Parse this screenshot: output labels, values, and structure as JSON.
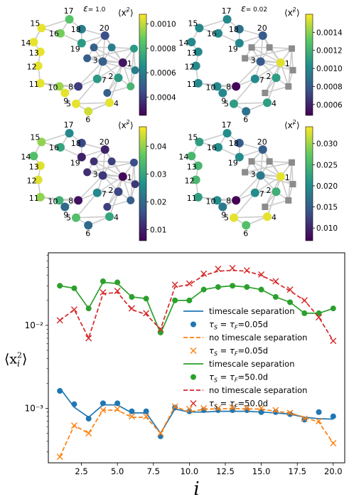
{
  "network": {
    "edges": [
      [
        1,
        2
      ],
      [
        1,
        3
      ],
      [
        1,
        7
      ],
      [
        1,
        20
      ],
      [
        1,
        21
      ],
      [
        1,
        22
      ],
      [
        1,
        23
      ],
      [
        1,
        24
      ],
      [
        1,
        25
      ],
      [
        1,
        26
      ],
      [
        1,
        27
      ],
      [
        2,
        3
      ],
      [
        2,
        4
      ],
      [
        2,
        7
      ],
      [
        2,
        26
      ],
      [
        3,
        20
      ],
      [
        3,
        7
      ],
      [
        3,
        8
      ],
      [
        3,
        21
      ],
      [
        3,
        22
      ],
      [
        4,
        6
      ],
      [
        4,
        5
      ],
      [
        4,
        2
      ],
      [
        5,
        6
      ],
      [
        5,
        7
      ],
      [
        6,
        4
      ],
      [
        7,
        8
      ],
      [
        8,
        10
      ],
      [
        8,
        11
      ],
      [
        8,
        9
      ],
      [
        9,
        10
      ],
      [
        10,
        11
      ],
      [
        11,
        12
      ],
      [
        12,
        13
      ],
      [
        13,
        14
      ],
      [
        14,
        15
      ],
      [
        15,
        16
      ],
      [
        15,
        17
      ],
      [
        16,
        17
      ],
      [
        17,
        18
      ],
      [
        18,
        19
      ],
      [
        18,
        20
      ],
      [
        19,
        20
      ],
      [
        20,
        22
      ],
      [
        21,
        22
      ],
      [
        21,
        23
      ],
      [
        22,
        24
      ],
      [
        23,
        24
      ],
      [
        23,
        25
      ],
      [
        24,
        25
      ],
      [
        25,
        26
      ],
      [
        26,
        27
      ],
      [
        27,
        2
      ],
      [
        19,
        16
      ],
      [
        20,
        21
      ],
      [
        24,
        26
      ]
    ],
    "squares": [
      21,
      22,
      23,
      24,
      25,
      26,
      27
    ]
  },
  "panels": [
    {
      "epsilon_label": "ε = 1.0",
      "colorbar_label": "⟨x_i²⟩",
      "colorbar_ticks": [
        "0.0010",
        "0.0008",
        "0.0006",
        "0.0004"
      ],
      "colorbar_tick_values": [
        0.001,
        0.0008,
        0.0006,
        0.0004
      ],
      "colorbar_range": [
        0.00025,
        0.00108
      ],
      "node_values": {
        "1": 0.0003,
        "2": 0.0007,
        "3": 0.0005,
        "4": 0.00105,
        "5": 0.00105,
        "6": 0.00102,
        "7": 0.0007,
        "8": 0.0004,
        "9": 0.00105,
        "10": 0.00095,
        "11": 0.00105,
        "12": 0.00105,
        "13": 0.00105,
        "14": 0.00105,
        "15": 0.00105,
        "16": 0.0009,
        "17": 0.00085,
        "18": 0.0006,
        "19": 0.0007,
        "20": 0.00045,
        "21": 0.0005,
        "22": 0.0006,
        "23": 0.0005,
        "24": 0.0007,
        "25": 0.0006,
        "26": 0.0008,
        "27": 0.0005
      }
    },
    {
      "epsilon_label": "ε = 0.02",
      "colorbar_label": "⟨x_i²⟩",
      "colorbar_ticks": [
        "0.0014",
        "0.0012",
        "0.0010",
        "0.0008",
        "0.0006"
      ],
      "colorbar_tick_values": [
        0.0014,
        0.0012,
        0.001,
        0.0008,
        0.0006
      ],
      "colorbar_range": [
        0.00048,
        0.0016
      ],
      "node_values": {
        "1": 0.00155,
        "2": 0.0011,
        "3": 0.0008,
        "4": 0.0011,
        "5": 0.0011,
        "6": 0.0009,
        "7": 0.001,
        "8": 0.0005,
        "9": 0.001,
        "10": 0.001,
        "11": 0.001,
        "12": 0.001,
        "13": 0.001,
        "14": 0.001,
        "15": 0.001,
        "16": 0.001,
        "17": 0.001,
        "18": 0.0009,
        "19": 0.001,
        "20": 0.0008
      }
    },
    {
      "epsilon_label": "",
      "colorbar_label": "⟨x_i²⟩",
      "colorbar_ticks": [
        "0.04",
        "0.03",
        "0.02",
        "0.01"
      ],
      "colorbar_tick_values": [
        0.04,
        0.03,
        0.02,
        0.01
      ],
      "colorbar_range": [
        0.006,
        0.047
      ],
      "node_values": {
        "1": 0.007,
        "2": 0.015,
        "3": 0.013,
        "4": 0.03,
        "5": 0.035,
        "6": 0.02,
        "7": 0.025,
        "8": 0.008,
        "9": 0.02,
        "10": 0.032,
        "11": 0.04,
        "12": 0.045,
        "13": 0.045,
        "14": 0.035,
        "15": 0.04,
        "16": 0.03,
        "17": 0.025,
        "18": 0.015,
        "19": 0.01,
        "20": 0.01,
        "21": 0.012,
        "22": 0.014,
        "23": 0.012,
        "24": 0.016,
        "25": 0.013,
        "26": 0.018,
        "27": 0.014
      }
    },
    {
      "epsilon_label": "",
      "colorbar_label": "⟨x_i²⟩",
      "colorbar_ticks": [
        "0.030",
        "0.025",
        "0.020",
        "0.015",
        "0.010"
      ],
      "colorbar_tick_values": [
        0.03,
        0.025,
        0.02,
        0.015,
        0.01
      ],
      "colorbar_range": [
        0.007,
        0.034
      ],
      "node_values": {
        "1": 0.033,
        "2": 0.024,
        "3": 0.018,
        "4": 0.033,
        "5": 0.033,
        "6": 0.026,
        "7": 0.02,
        "8": 0.007,
        "9": 0.018,
        "10": 0.02,
        "11": 0.022,
        "12": 0.025,
        "13": 0.025,
        "14": 0.025,
        "15": 0.022,
        "16": 0.02,
        "17": 0.02,
        "18": 0.015,
        "19": 0.02,
        "20": 0.015
      }
    }
  ],
  "chart_data": {
    "type": "line",
    "xlabel": "i",
    "ylabel": "⟨x_i²⟩",
    "yscale": "log",
    "xlim": [
      0.2,
      20.8
    ],
    "ylim": [
      0.00022,
      0.075
    ],
    "xticks": [
      2.5,
      5.0,
      7.5,
      10.0,
      12.5,
      15.0,
      17.5,
      20.0
    ],
    "xtick_labels": [
      "2.5",
      "5.0",
      "7.5",
      "10.0",
      "12.5",
      "15.0",
      "17.5",
      "20.0"
    ],
    "yticks": [
      0.001,
      0.01
    ],
    "ytick_labels": [
      "10⁻³",
      "10⁻²"
    ],
    "x": [
      1,
      2,
      3,
      4,
      5,
      6,
      7,
      8,
      9,
      10,
      11,
      12,
      13,
      14,
      15,
      16,
      17,
      18,
      19,
      20
    ],
    "series": [
      {
        "name": "timescale separation",
        "style": "solid-line",
        "color": "#1f77b4",
        "values": [
          0.00175,
          0.00103,
          0.00078,
          0.0011,
          0.0011,
          0.00088,
          0.00088,
          0.0005,
          0.00098,
          0.0009,
          0.0009,
          0.00092,
          0.00092,
          0.00092,
          0.0009,
          0.00088,
          0.00085,
          0.00078,
          0.00075,
          0.00074
        ]
      },
      {
        "name": "τ_S = τ_F=0.05d",
        "style": "circle-marker",
        "color": "#1f77b4",
        "values": [
          0.00162,
          0.00112,
          0.00075,
          0.00115,
          0.00115,
          0.00092,
          0.00092,
          0.00046,
          0.00102,
          0.00092,
          0.00095,
          0.00095,
          0.00095,
          0.00095,
          0.0009,
          0.0009,
          0.00085,
          0.00073,
          0.0009,
          0.0008
        ]
      },
      {
        "name": "no timescale separation",
        "style": "dashed-line",
        "color": "#ff7f0e",
        "values": [
          0.00026,
          0.00062,
          0.0005,
          0.00095,
          0.00095,
          0.00078,
          0.00078,
          0.0005,
          0.00105,
          0.0009,
          0.00098,
          0.00098,
          0.001,
          0.00098,
          0.00098,
          0.00092,
          0.00088,
          0.00078,
          0.00068,
          0.00038
        ]
      },
      {
        "name": "τ_S = τ_F=0.05d",
        "style": "x-marker",
        "color": "#ff7f0e",
        "values": [
          0.00026,
          0.00062,
          0.0005,
          0.00095,
          0.00098,
          0.0008,
          0.0008,
          0.0005,
          0.00105,
          0.00098,
          0.001,
          0.001,
          0.00102,
          0.001,
          0.001,
          0.00095,
          0.00088,
          0.00075,
          0.0007,
          0.00038
        ]
      },
      {
        "name": "timescale separation",
        "style": "solid-line",
        "color": "#2ca02c",
        "values": [
          0.03,
          0.028,
          0.016,
          0.033,
          0.032,
          0.022,
          0.021,
          0.008,
          0.02,
          0.02,
          0.027,
          0.029,
          0.03,
          0.029,
          0.027,
          0.022,
          0.019,
          0.014,
          0.014,
          0.016
        ]
      },
      {
        "name": "τ_S = τ_F=50.0d",
        "style": "circle-marker",
        "color": "#2ca02c",
        "values": [
          0.03,
          0.028,
          0.016,
          0.034,
          0.033,
          0.022,
          0.021,
          0.0082,
          0.02,
          0.02,
          0.027,
          0.029,
          0.03,
          0.029,
          0.027,
          0.022,
          0.019,
          0.014,
          0.014,
          0.016
        ]
      },
      {
        "name": "no timescale separation",
        "style": "dashed-line",
        "color": "#d62728",
        "values": [
          0.0115,
          0.0155,
          0.007,
          0.024,
          0.025,
          0.0155,
          0.0135,
          0.009,
          0.029,
          0.031,
          0.04,
          0.045,
          0.046,
          0.045,
          0.04,
          0.033,
          0.026,
          0.02,
          0.0125,
          0.0065
        ]
      },
      {
        "name": "τ_S = τ_F=50.0d",
        "style": "x-marker",
        "color": "#d62728",
        "values": [
          0.0115,
          0.0155,
          0.007,
          0.025,
          0.026,
          0.016,
          0.014,
          0.009,
          0.031,
          0.032,
          0.042,
          0.048,
          0.049,
          0.046,
          0.041,
          0.034,
          0.027,
          0.02,
          0.0125,
          0.0065
        ]
      }
    ]
  }
}
